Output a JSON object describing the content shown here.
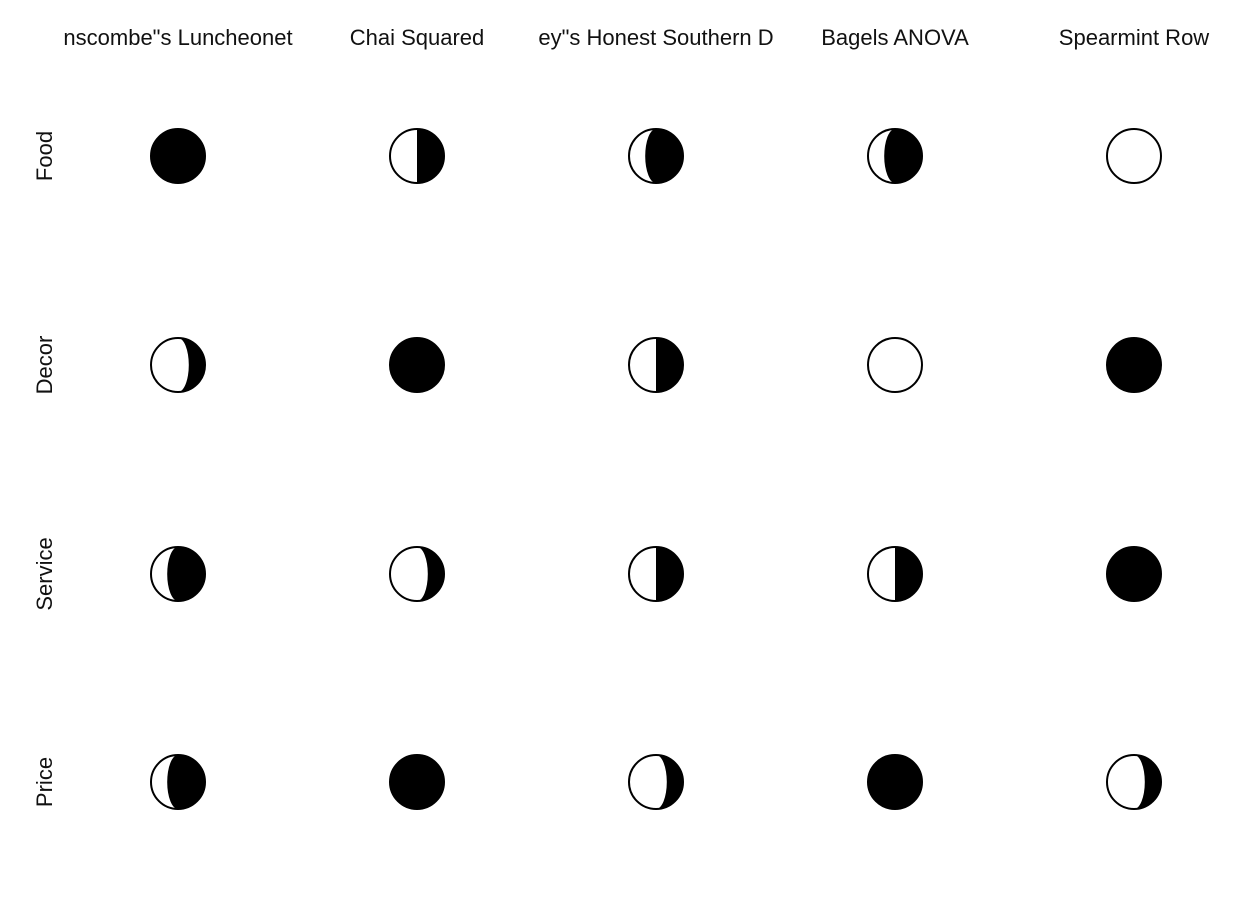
{
  "chart_data": {
    "type": "table",
    "columns": [
      "nscombe\"s Luncheonet",
      "Chai Squared",
      "ey\"s Honest Southern D",
      "Bagels ANOVA",
      "Spearmint Row"
    ],
    "rows": [
      "Food",
      "Decor",
      "Service",
      "Price"
    ],
    "values": [
      [
        1.0,
        0.5,
        0.7,
        0.7,
        0.0
      ],
      [
        0.3,
        1.0,
        0.5,
        0.0,
        1.0
      ],
      [
        0.7,
        0.3,
        0.5,
        0.5,
        1.0
      ],
      [
        0.7,
        1.0,
        0.3,
        1.0,
        0.3
      ]
    ],
    "value_encoding": "fraction of moon shaded black, growing from the right edge",
    "colors": {
      "fill": "#000000",
      "background": "#ffffff"
    },
    "grid": false,
    "legend": "none"
  }
}
